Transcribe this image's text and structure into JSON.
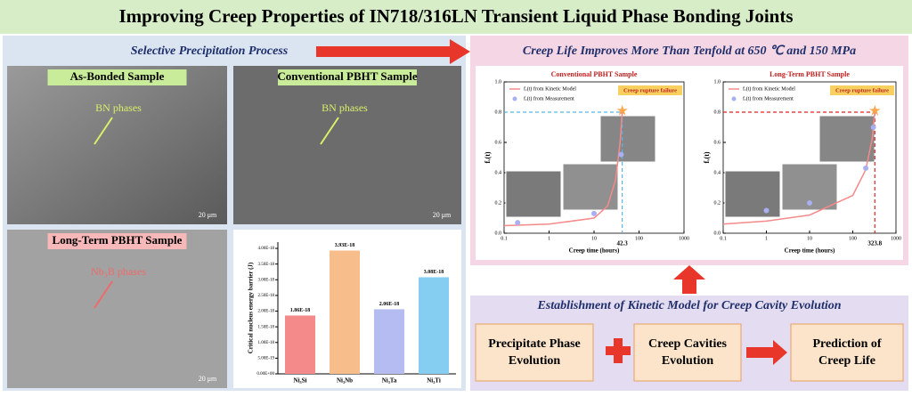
{
  "title": "Improving Creep Properties of IN718/316LN Transient Liquid Phase Bonding Joints",
  "left": {
    "title": "Selective Precipitation Process",
    "panels": [
      {
        "label": "As-Bonded Sample",
        "annotation": "BN phases",
        "scale": "20 μm"
      },
      {
        "label": "Conventional PBHT Sample",
        "annotation": "BN phases",
        "scale": "20 μm"
      },
      {
        "label": "Long-Term PBHT Sample",
        "annotation": "Nb₃B phases",
        "scale": "20 μm"
      }
    ]
  },
  "right": {
    "title": "Creep Life Improves More Than Tenfold at 650 ℃ and 150 MPa"
  },
  "bottom": {
    "title": "Establishment of Kinetic Model for Creep Cavity Evolution",
    "boxes": [
      {
        "lines": [
          "Precipitate Phase",
          "Evolution"
        ]
      },
      {
        "lines": [
          "Creep Cavities",
          "Evolution"
        ]
      },
      {
        "lines": [
          "Prediction of",
          "Creep Life"
        ]
      }
    ]
  },
  "chart_data": [
    {
      "type": "bar",
      "ylabel": "Critical nucleus energy barrier (J)",
      "categories": [
        "Ni₃Si",
        "Ni₃Nb",
        "Ni₃Ta",
        "Ni₃Ti"
      ],
      "values": [
        1.86e-18,
        3.93e-18,
        2.06e-18,
        3.08e-18
      ],
      "value_labels": [
        "1.86E-18",
        "3.93E-18",
        "2.06E-18",
        "3.08E-18"
      ],
      "colors": [
        "#f48a8a",
        "#f7bd8a",
        "#b4bcf2",
        "#86cdf2"
      ],
      "ylim": [
        0,
        4.2e-18
      ],
      "yticks": [
        {
          "value": 0,
          "label": "0.00E+00"
        },
        {
          "value": 5e-19,
          "label": "5.00E-19"
        },
        {
          "value": 1e-18,
          "label": "1.00E-18"
        },
        {
          "value": 1.5e-18,
          "label": "1.50E-18"
        },
        {
          "value": 2e-18,
          "label": "2.00E-18"
        },
        {
          "value": 2.5e-18,
          "label": "2.50E-18"
        },
        {
          "value": 3e-18,
          "label": "3.00E-18"
        },
        {
          "value": 3.5e-18,
          "label": "3.50E-18"
        },
        {
          "value": 4e-18,
          "label": "4.00E-18"
        }
      ]
    },
    {
      "type": "line",
      "title": "Conventional PBHT Sample",
      "xlabel": "Creep time (hours)",
      "ylabel": "fᵥ(t)",
      "log_x": true,
      "xlim": [
        0.1,
        1000
      ],
      "xticks": [
        0.1,
        1,
        10,
        100,
        1000
      ],
      "ylim": [
        0,
        1.0
      ],
      "yticks": [
        {
          "value": 0,
          "label": "0.0"
        },
        0.2,
        0.4,
        0.6,
        0.8,
        {
          "value": 1.0,
          "label": "1.0"
        }
      ],
      "annotation": "Creep rupture failure",
      "rupture_time": 42.3,
      "rupture_fraction": 0.8,
      "rupture_color": "#5ab4e6",
      "series": [
        {
          "name": "fᵥ(t) from Kinetic Model",
          "color": "#f48a8a",
          "x": [
            0.1,
            1,
            10,
            20,
            30,
            38,
            42.3
          ],
          "values": [
            0.05,
            0.06,
            0.1,
            0.18,
            0.35,
            0.6,
            0.8
          ]
        },
        {
          "name": "fᵥ(t) from Measurement",
          "color": "#a8b0f2",
          "marker": true,
          "x": [
            0.2,
            10,
            40
          ],
          "values": [
            0.07,
            0.13,
            0.52
          ]
        }
      ]
    },
    {
      "type": "line",
      "title": "Long-Term PBHT Sample",
      "xlabel": "Creep time (hours)",
      "ylabel": "fᵥ(t)",
      "log_x": true,
      "xlim": [
        0.1,
        1000
      ],
      "xticks": [
        0.1,
        1,
        10,
        100,
        1000
      ],
      "ylim": [
        0,
        1.0
      ],
      "yticks": [
        {
          "value": 0,
          "label": "0.0"
        },
        0.2,
        0.4,
        0.6,
        0.8,
        {
          "value": 1.0,
          "label": "1.0"
        }
      ],
      "annotation": "Creep rupture failure",
      "rupture_time": 323.8,
      "rupture_fraction": 0.8,
      "rupture_color": "#e02020",
      "series": [
        {
          "name": "fᵥ(t) from Kinetic Model",
          "color": "#f48a8a",
          "x": [
            0.1,
            1,
            10,
            100,
            200,
            280,
            323.8
          ],
          "values": [
            0.06,
            0.08,
            0.12,
            0.25,
            0.42,
            0.62,
            0.8
          ]
        },
        {
          "name": "fᵥ(t) from Measurement",
          "color": "#a8b0f2",
          "marker": true,
          "x": [
            1,
            10,
            200,
            300
          ],
          "values": [
            0.15,
            0.2,
            0.43,
            0.7
          ]
        }
      ]
    }
  ]
}
